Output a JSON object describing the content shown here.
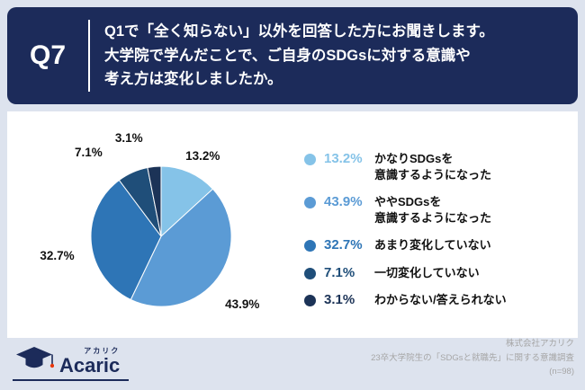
{
  "header": {
    "q_label": "Q7",
    "question_lines": [
      "Q1で「全く知らない」以外を回答した方にお聞きします。",
      "大学院で学んだことで、ご自身のSDGsに対する意識や",
      "考え方は変化しましたか。"
    ]
  },
  "chart_data": {
    "type": "pie",
    "categories": [
      "かなりSDGsを意識するようになった",
      "ややSDGsを意識するようになった",
      "あまり変化していない",
      "一切変化していない",
      "わからない/答えられない"
    ],
    "values": [
      13.2,
      43.9,
      32.7,
      7.1,
      3.1
    ],
    "unit": "%",
    "colors": [
      "#85C3E8",
      "#5B9BD5",
      "#2E75B6",
      "#1F4E79",
      "#1C3357"
    ],
    "start_angle_deg_from_top": 0,
    "direction": "clockwise",
    "legend_position": "right",
    "title": ""
  },
  "legend": {
    "items": [
      {
        "label_lines": [
          "かなりSDGsを",
          "意識するようになった"
        ]
      },
      {
        "label_lines": [
          "ややSDGsを",
          "意識するようになった"
        ]
      },
      {
        "label_lines": [
          "あまり変化していない"
        ]
      },
      {
        "label_lines": [
          "一切変化していない"
        ]
      },
      {
        "label_lines": [
          "わからない/答えられない"
        ]
      }
    ]
  },
  "footer": {
    "logo": {
      "katakana": "アカリク",
      "name": "Acaric"
    },
    "source_lines": [
      "株式会社アカリク",
      "23卒大学院生の「SDGsと就職先」に関する意識調査",
      "(n=98)"
    ]
  }
}
